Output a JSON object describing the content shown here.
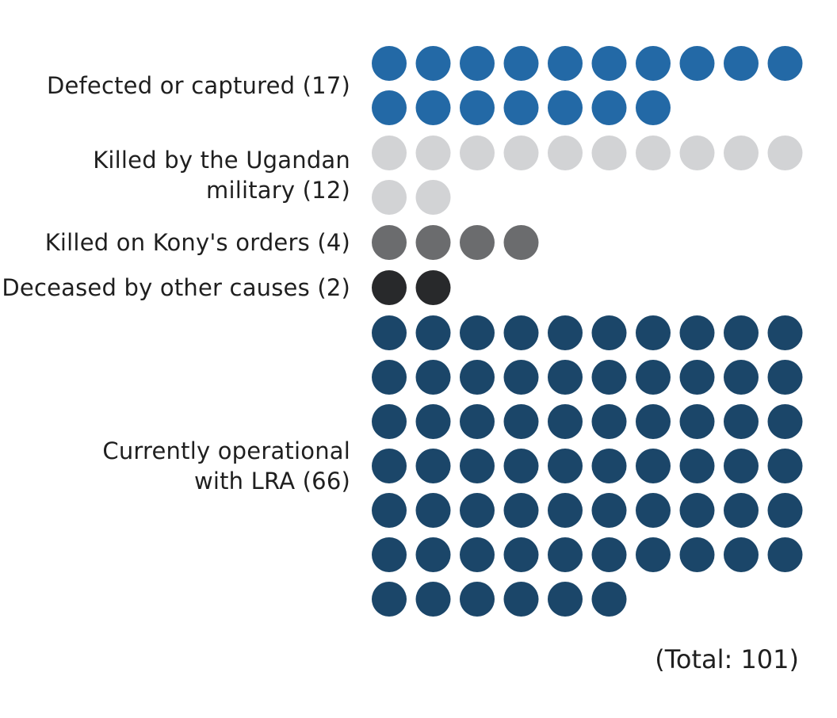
{
  "chart_data": {
    "type": "waffle",
    "dots_per_row": 10,
    "groups": [
      {
        "label_lines": [
          "Defected or captured (17)"
        ],
        "value": 17,
        "color": "#2369a6"
      },
      {
        "label_lines": [
          "Killed by the Ugandan",
          "military (12)"
        ],
        "value": 12,
        "color": "#d2d3d5"
      },
      {
        "label_lines": [
          "Killed on Kony's orders (4)"
        ],
        "value": 4,
        "color": "#6b6c6e"
      },
      {
        "label_lines": [
          "Deceased by other causes (2)"
        ],
        "value": 2,
        "color": "#28292b"
      },
      {
        "label_lines": [
          "Currently operational",
          "with LRA (66)"
        ],
        "value": 66,
        "color": "#1b4669"
      }
    ],
    "total_label": "(Total: 101)",
    "total": 101
  }
}
